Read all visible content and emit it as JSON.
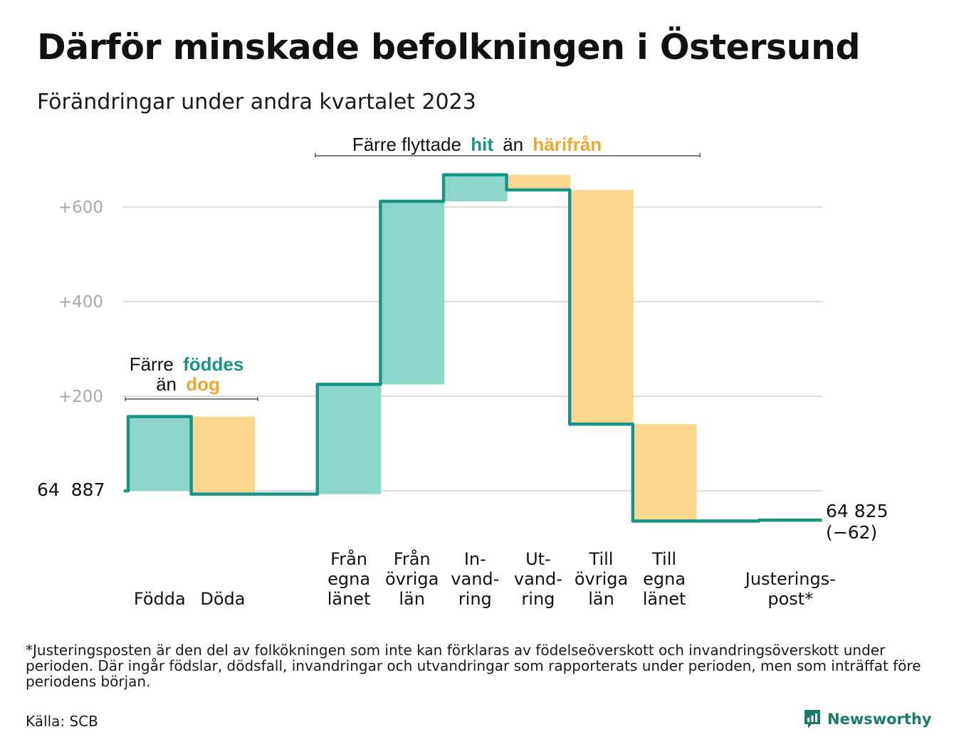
{
  "title": "Därför minskade befolkningen i Östersund",
  "subtitle": "Förändringar under andra kvartalet 2023",
  "colors": {
    "positive_fill": "#8dd6cb",
    "negative_fill": "#fad68f",
    "line": "#1a9484",
    "hit_text": "#1a9484",
    "harifran_text": "#f0a830",
    "grid": "#dddddd",
    "tick_text": "#a8a8a8"
  },
  "annotations": {
    "top": {
      "prefix": "Färre flyttade",
      "hit": "hit",
      "middle": "än",
      "harifran": "härifrån"
    },
    "left": {
      "line1_prefix": "Färre",
      "line1_word": "föddes",
      "line2_prefix": "än",
      "line2_word": "dog"
    }
  },
  "start_label": {
    "first": "64",
    "second": "887"
  },
  "end_label": {
    "value": "64 825",
    "change": "(−62)"
  },
  "footnote": "*Justeringsposten är den del av folkökningen som inte kan förklaras av födelseöverskott och invandringsöverskott under perioden. Där ingår födslar, dödsfall, invandringar och utvandringar som rapporterats under perioden, men som inträffat före periodens början.",
  "source": "Källa: SCB",
  "brand": {
    "name": "Newsworthy",
    "icon": "newsworthy-logo-icon"
  },
  "chart_data": {
    "type": "waterfall",
    "start_value": 64887,
    "end_value": 64825,
    "ylim": [
      -80,
      690
    ],
    "yticks": [
      {
        "value": 200,
        "label": "+200"
      },
      {
        "value": 400,
        "label": "+400"
      },
      {
        "value": 600,
        "label": "+600"
      }
    ],
    "grid": true,
    "steps": [
      {
        "id": "fodda",
        "label_lines": [
          "Födda"
        ],
        "change": 157,
        "kind": "positive"
      },
      {
        "id": "doda",
        "label_lines": [
          "Döda"
        ],
        "change": -164,
        "kind": "negative"
      },
      {
        "id": "gap",
        "label_lines": [],
        "change": 0,
        "kind": "none"
      },
      {
        "id": "fran-egna-lanet",
        "label_lines": [
          "Från",
          "egna",
          "länet"
        ],
        "change": 232,
        "kind": "positive"
      },
      {
        "id": "fran-ovriga-lan",
        "label_lines": [
          "Från",
          "övriga",
          "län"
        ],
        "change": 387,
        "kind": "positive"
      },
      {
        "id": "invandring",
        "label_lines": [
          "In-",
          "vand-",
          "ring"
        ],
        "change": 56,
        "kind": "positive"
      },
      {
        "id": "utvandring",
        "label_lines": [
          "Ut-",
          "vand-",
          "ring"
        ],
        "change": -32,
        "kind": "negative"
      },
      {
        "id": "till-ovriga-lan",
        "label_lines": [
          "Till",
          "övriga",
          "län"
        ],
        "change": -495,
        "kind": "negative"
      },
      {
        "id": "till-egna-lanet",
        "label_lines": [
          "Till",
          "egna",
          "länet"
        ],
        "change": -205,
        "kind": "negative"
      },
      {
        "id": "gap2",
        "label_lines": [],
        "change": 0,
        "kind": "none"
      },
      {
        "id": "justeringspost",
        "label_lines": [
          "Justerings-",
          "post*"
        ],
        "change": 2,
        "kind": "adjustment"
      }
    ]
  }
}
